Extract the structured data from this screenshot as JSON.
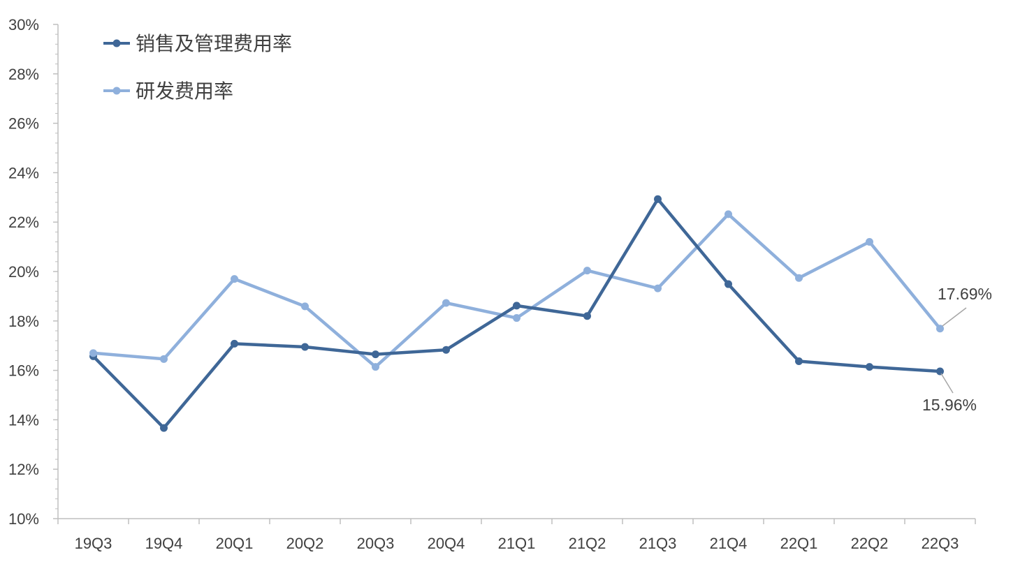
{
  "chart_data": {
    "type": "line",
    "title": "",
    "xlabel": "",
    "ylabel": "",
    "categories": [
      "19Q3",
      "19Q4",
      "20Q1",
      "20Q2",
      "20Q3",
      "20Q4",
      "21Q1",
      "21Q2",
      "21Q3",
      "21Q4",
      "22Q1",
      "22Q2",
      "22Q3"
    ],
    "ylim": [
      0.1,
      0.3
    ],
    "y_ticks": [
      "10%",
      "12%",
      "14%",
      "16%",
      "18%",
      "20%",
      "22%",
      "24%",
      "26%",
      "28%",
      "30%"
    ],
    "grid": false,
    "legend_position": "top-left",
    "series": [
      {
        "name": "销售及管理费用率",
        "color": "#3f6797",
        "values": [
          0.1657,
          0.1367,
          0.1708,
          0.1695,
          0.1665,
          0.1683,
          0.1862,
          0.182,
          0.2293,
          0.1949,
          0.1637,
          0.1614,
          0.1596
        ],
        "end_label": "15.96%"
      },
      {
        "name": "研发费用率",
        "color": "#8fb0dc",
        "values": [
          0.167,
          0.1646,
          0.197,
          0.1859,
          0.1614,
          0.1873,
          0.1812,
          0.2004,
          0.1932,
          0.2232,
          0.1974,
          0.212,
          0.1769
        ],
        "end_label": "17.69%"
      }
    ]
  }
}
